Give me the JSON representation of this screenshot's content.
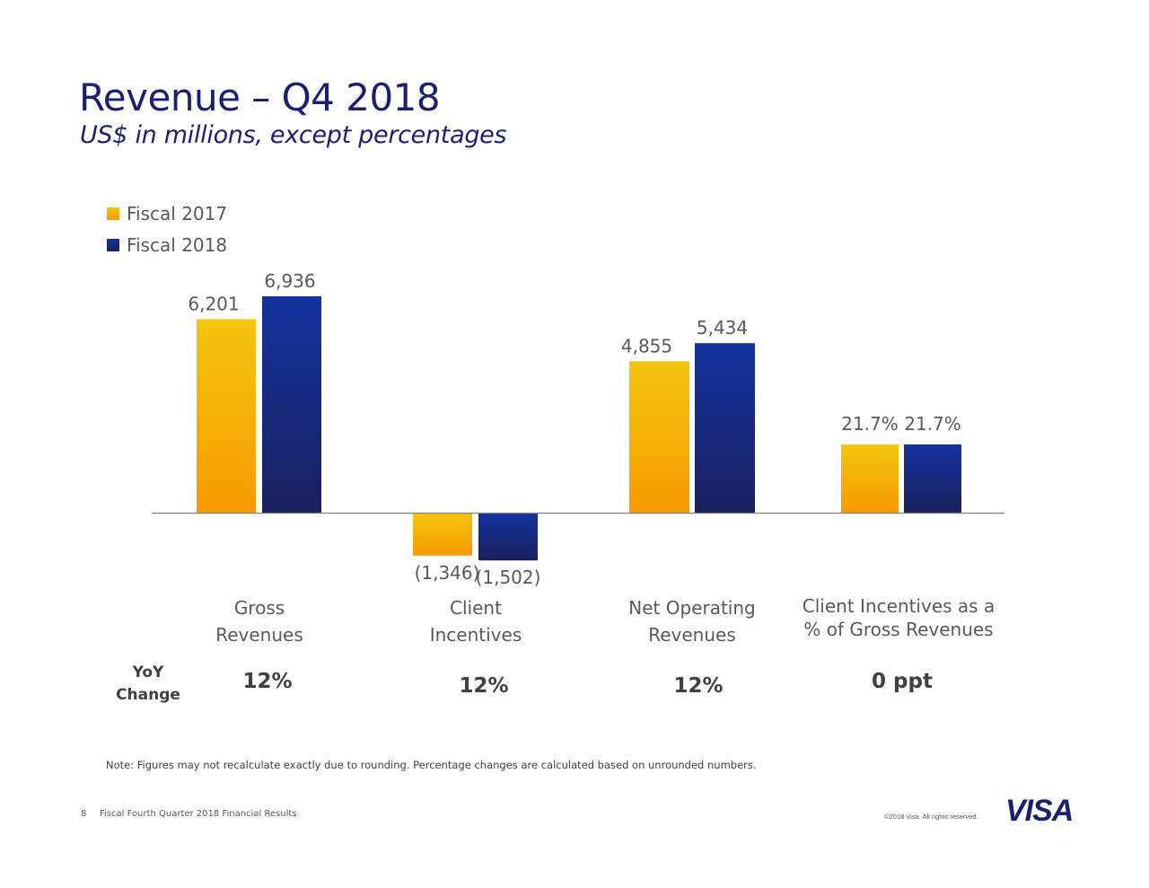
{
  "header": {
    "title": "Revenue – Q4 2018",
    "subtitle": "US$ in millions, except percentages"
  },
  "legend": [
    {
      "label": "Fiscal 2017",
      "color": "#f5b400"
    },
    {
      "label": "Fiscal 2018",
      "color": "#1a2a8a"
    }
  ],
  "chart_data": {
    "type": "bar",
    "title": "Revenue – Q4 2018",
    "subtitle": "US$ in millions, except percentages",
    "xlabel": "",
    "ylabel": "",
    "grid": false,
    "legend_position": "top-left",
    "categories": [
      "Gross Revenues",
      "Client Incentives",
      "Net Operating Revenues",
      "Client Incentives as a % of Gross Revenues"
    ],
    "category_lines": [
      [
        "Gross",
        "Revenues"
      ],
      [
        "Client",
        "Incentives"
      ],
      [
        "Net Operating",
        "Revenues"
      ],
      [
        "Client Incentives as a",
        "% of Gross Revenues"
      ]
    ],
    "series": [
      {
        "name": "Fiscal 2017",
        "values": [
          6201,
          -1346,
          4855,
          21.7
        ],
        "labels": [
          "6,201",
          "(1,346)",
          "4,855",
          "21.7%"
        ],
        "color_top": "#f4c50f",
        "color_bottom": "#f79a00"
      },
      {
        "name": "Fiscal 2018",
        "values": [
          6936,
          -1502,
          5434,
          21.7
        ],
        "labels": [
          "6,936",
          "(1,502)",
          "5,434",
          "21.7%"
        ],
        "color_top": "#13339f",
        "color_bottom": "#1b1f5e"
      }
    ],
    "units": [
      "US$ millions",
      "US$ millions",
      "US$ millions",
      "percent"
    ],
    "ylim": [
      -1502,
      6936
    ]
  },
  "yoy": {
    "heading_line1": "YoY",
    "heading_line2": "Change",
    "values": [
      "12%",
      "12%",
      "12%",
      "0 ppt"
    ]
  },
  "note": "Note: Figures may not recalculate exactly due to rounding. Percentage changes are calculated based on unrounded numbers.",
  "footer": {
    "page_number": "8",
    "text": "Fiscal Fourth Quarter 2018 Financial Results",
    "copyright": "©2018 Visa. All rights reserved.",
    "logo": "VISA"
  }
}
